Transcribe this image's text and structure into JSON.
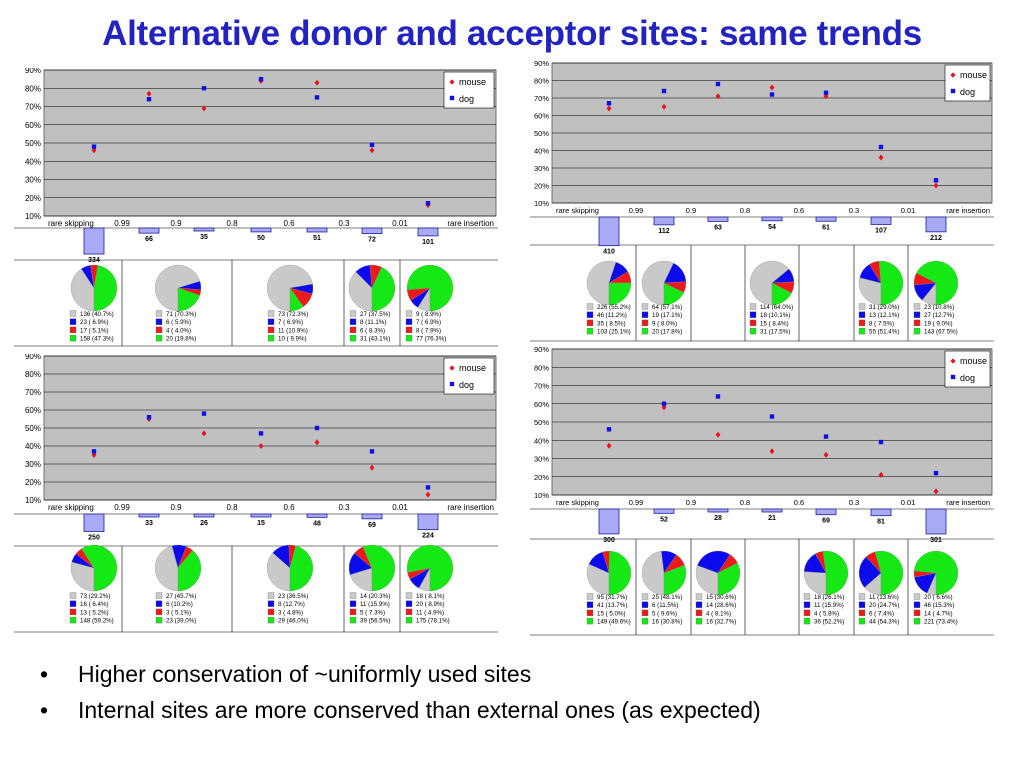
{
  "title": "Alternative donor and acceptor sites: same trends",
  "bullets": [
    "Higher conservation of ~uniformly used sites",
    "Internal sites are more conserved than external ones (as expected)"
  ],
  "bullet_symbol": "•",
  "colors": {
    "plot_bg": "#c0c0c0",
    "mouse": "#e8121e",
    "dog": "#1010e6",
    "bar_fill": "#a9aaf5",
    "bar_stroke": "#20209a",
    "pie_gray": "#c9c9c9",
    "pie_blue": "#0a0aec",
    "pie_red": "#ee1a1a",
    "pie_green": "#16e816"
  },
  "chart_data": [
    {
      "type": "scatter",
      "y_ticks": [
        "90%",
        "80%",
        "70%",
        "60%",
        "50%",
        "40%",
        "30%",
        "20%",
        "10%"
      ],
      "ylim": [
        10,
        90
      ],
      "x_ticks": [
        "rare skipping",
        "0.99",
        "0.9",
        "0.8",
        "0.6",
        "0.3",
        "0.01",
        "rare insertion"
      ],
      "legend": [
        "mouse",
        "dog"
      ],
      "legend_placement": "top-right",
      "grid": true,
      "series": [
        {
          "name": "mouse",
          "values": [
            46,
            77,
            69,
            84,
            83,
            46,
            16
          ]
        },
        {
          "name": "dog",
          "values": [
            48,
            74,
            80,
            85,
            75,
            49,
            17
          ]
        }
      ],
      "bars": [
        334,
        66,
        35,
        50,
        51,
        72,
        101
      ],
      "pies": [
        {
          "labels": [
            "136 (40.7%)",
            "23 ( 6.9%)",
            "17 ( 5.1%)",
            "158 (47.3%)"
          ],
          "values": [
            136,
            23,
            17,
            158
          ]
        },
        {
          "labels": [
            "71 (70.3%)",
            "6 ( 5.9%)",
            "4 ( 4.0%)",
            "20 (19.8%)"
          ],
          "values": [
            71,
            6,
            4,
            20
          ]
        },
        {
          "labels": [
            "73 (72.3%)",
            "7 ( 6.9%)",
            "11 (10.9%)",
            "10 ( 9.9%)"
          ],
          "values": [
            73,
            7,
            11,
            10
          ]
        },
        {
          "labels": [
            "27 (37.5%)",
            "8 (11.1%)",
            "6 ( 8.3%)",
            "31 (43.1%)"
          ],
          "values": [
            27,
            8,
            6,
            31
          ]
        },
        {
          "labels": [
            "9 ( 8.9%)",
            "7 ( 6.9%)",
            "8 ( 7.9%)",
            "77 (76.3%)"
          ],
          "values": [
            9,
            7,
            8,
            77
          ]
        }
      ]
    },
    {
      "type": "scatter",
      "y_ticks": [
        "90%",
        "80%",
        "70%",
        "60%",
        "50%",
        "40%",
        "30%",
        "20%",
        "10%"
      ],
      "ylim": [
        10,
        90
      ],
      "x_ticks": [
        "rare skipping",
        "0.99",
        "0.9",
        "0.8",
        "0.6",
        "0.3",
        "0.01",
        "rare insertion"
      ],
      "legend": [
        "mouse",
        "dog"
      ],
      "legend_placement": "top-right",
      "grid": true,
      "series": [
        {
          "name": "mouse",
          "values": [
            64,
            65,
            71,
            76,
            71,
            36,
            20
          ]
        },
        {
          "name": "dog",
          "values": [
            67,
            74,
            78,
            72,
            73,
            42,
            23
          ]
        }
      ],
      "bars": [
        410,
        112,
        63,
        54,
        61,
        107,
        212
      ],
      "pies": [
        {
          "labels": [
            "226 (55.2%)",
            "46 (11.2%)",
            "35 ( 8.5%)",
            "103 (25.1%)"
          ],
          "values": [
            226,
            46,
            35,
            103
          ]
        },
        {
          "labels": [
            "64 (57.1%)",
            "19 (17.1%)",
            "9 ( 8.0%)",
            "20 (17.8%)"
          ],
          "values": [
            64,
            19,
            9,
            20
          ]
        },
        {
          "labels": [
            "114 (64.0%)",
            "18 (10.1%)",
            "15 ( 8.4%)",
            "31 (17.5%)"
          ],
          "values": [
            114,
            18,
            15,
            31
          ]
        },
        {
          "labels": [
            "31 (29.0%)",
            "13 (12.1%)",
            "8 ( 7.5%)",
            "55 (51.4%)"
          ],
          "values": [
            31,
            13,
            8,
            55
          ]
        },
        {
          "labels": [
            "23 (10.8%)",
            "27 (12.7%)",
            "19 ( 9.0%)",
            "143 (67.5%)"
          ],
          "values": [
            23,
            27,
            19,
            143
          ]
        }
      ]
    },
    {
      "type": "scatter",
      "y_ticks": [
        "90%",
        "80%",
        "70%",
        "60%",
        "50%",
        "40%",
        "30%",
        "20%",
        "10%"
      ],
      "ylim": [
        10,
        90
      ],
      "x_ticks": [
        "rare skipping",
        "0.99",
        "0.9",
        "0.8",
        "0.6",
        "0.3",
        "0.01",
        "rare insertion"
      ],
      "legend": [
        "mouse",
        "dog"
      ],
      "legend_placement": "top-right",
      "grid": true,
      "series": [
        {
          "name": "mouse",
          "values": [
            35,
            55,
            47,
            40,
            42,
            28,
            13
          ]
        },
        {
          "name": "dog",
          "values": [
            37,
            56,
            58,
            47,
            50,
            37,
            17
          ]
        }
      ],
      "bars": [
        250,
        33,
        26,
        15,
        48,
        69,
        224
      ],
      "pies": [
        {
          "labels": [
            "73 (29.2%)",
            "16 ( 6.4%)",
            "13 ( 5.2%)",
            "148 (59.2%)"
          ],
          "values": [
            73,
            16,
            13,
            148
          ]
        },
        {
          "labels": [
            "27 (45.7%)",
            "6 (10.2%)",
            "3 ( 5.1%)",
            "23 (39.0%)"
          ],
          "values": [
            27,
            6,
            3,
            23
          ]
        },
        {
          "labels": [
            "23 (36.5%)",
            "8 (12.7%)",
            "3 ( 4.8%)",
            "29 (46.0%)"
          ],
          "values": [
            23,
            8,
            3,
            29
          ]
        },
        {
          "labels": [
            "14 (20.3%)",
            "11 (15.9%)",
            "5 ( 7.3%)",
            "39 (56.5%)"
          ],
          "values": [
            14,
            11,
            5,
            39
          ]
        },
        {
          "labels": [
            "18 ( 8.1%)",
            "20 ( 8.9%)",
            "11 ( 4.9%)",
            "175 (78.1%)"
          ],
          "values": [
            18,
            20,
            11,
            175
          ]
        }
      ]
    },
    {
      "type": "scatter",
      "y_ticks": [
        "90%",
        "80%",
        "70%",
        "60%",
        "50%",
        "40%",
        "30%",
        "20%",
        "10%"
      ],
      "ylim": [
        10,
        90
      ],
      "x_ticks": [
        "rare skipping",
        "0.99",
        "0.9",
        "0.8",
        "0.6",
        "0.3",
        "0.01",
        "rare insertion"
      ],
      "legend": [
        "mouse",
        "dog"
      ],
      "legend_placement": "top-right",
      "grid": true,
      "series": [
        {
          "name": "mouse",
          "values": [
            37,
            58,
            43,
            34,
            32,
            21,
            12
          ]
        },
        {
          "name": "dog",
          "values": [
            46,
            60,
            64,
            53,
            42,
            39,
            22
          ]
        }
      ],
      "bars": [
        300,
        52,
        28,
        21,
        69,
        81,
        301
      ],
      "pies": [
        {
          "labels": [
            "95 (31.7%)",
            "41 (13.7%)",
            "15 ( 5.0%)",
            "149 (49.6%)"
          ],
          "values": [
            95,
            41,
            15,
            149
          ]
        },
        {
          "labels": [
            "25 (48.1%)",
            "6 (11.5%)",
            "5 ( 9.6%)",
            "16 (30.8%)"
          ],
          "values": [
            25,
            6,
            5,
            16
          ]
        },
        {
          "labels": [
            "15 (30.6%)",
            "14 (28.6%)",
            "4 ( 8.1%)",
            "16 (32.7%)"
          ],
          "values": [
            15,
            14,
            4,
            16
          ]
        },
        {
          "labels": [
            "18 (26.1%)",
            "11 (15.9%)",
            "4 ( 5.8%)",
            "36 (52.2%)"
          ],
          "values": [
            18,
            11,
            4,
            36
          ]
        },
        {
          "labels": [
            "11 (13.6%)",
            "20 (24.7%)",
            "6 ( 7.4%)",
            "44 (54.3%)"
          ],
          "values": [
            11,
            20,
            6,
            44
          ]
        },
        {
          "labels": [
            "20 ( 6.6%)",
            "46 (15.3%)",
            "14 ( 4.7%)",
            "221 (73.4%)"
          ],
          "values": [
            20,
            46,
            14,
            221
          ]
        }
      ]
    }
  ]
}
